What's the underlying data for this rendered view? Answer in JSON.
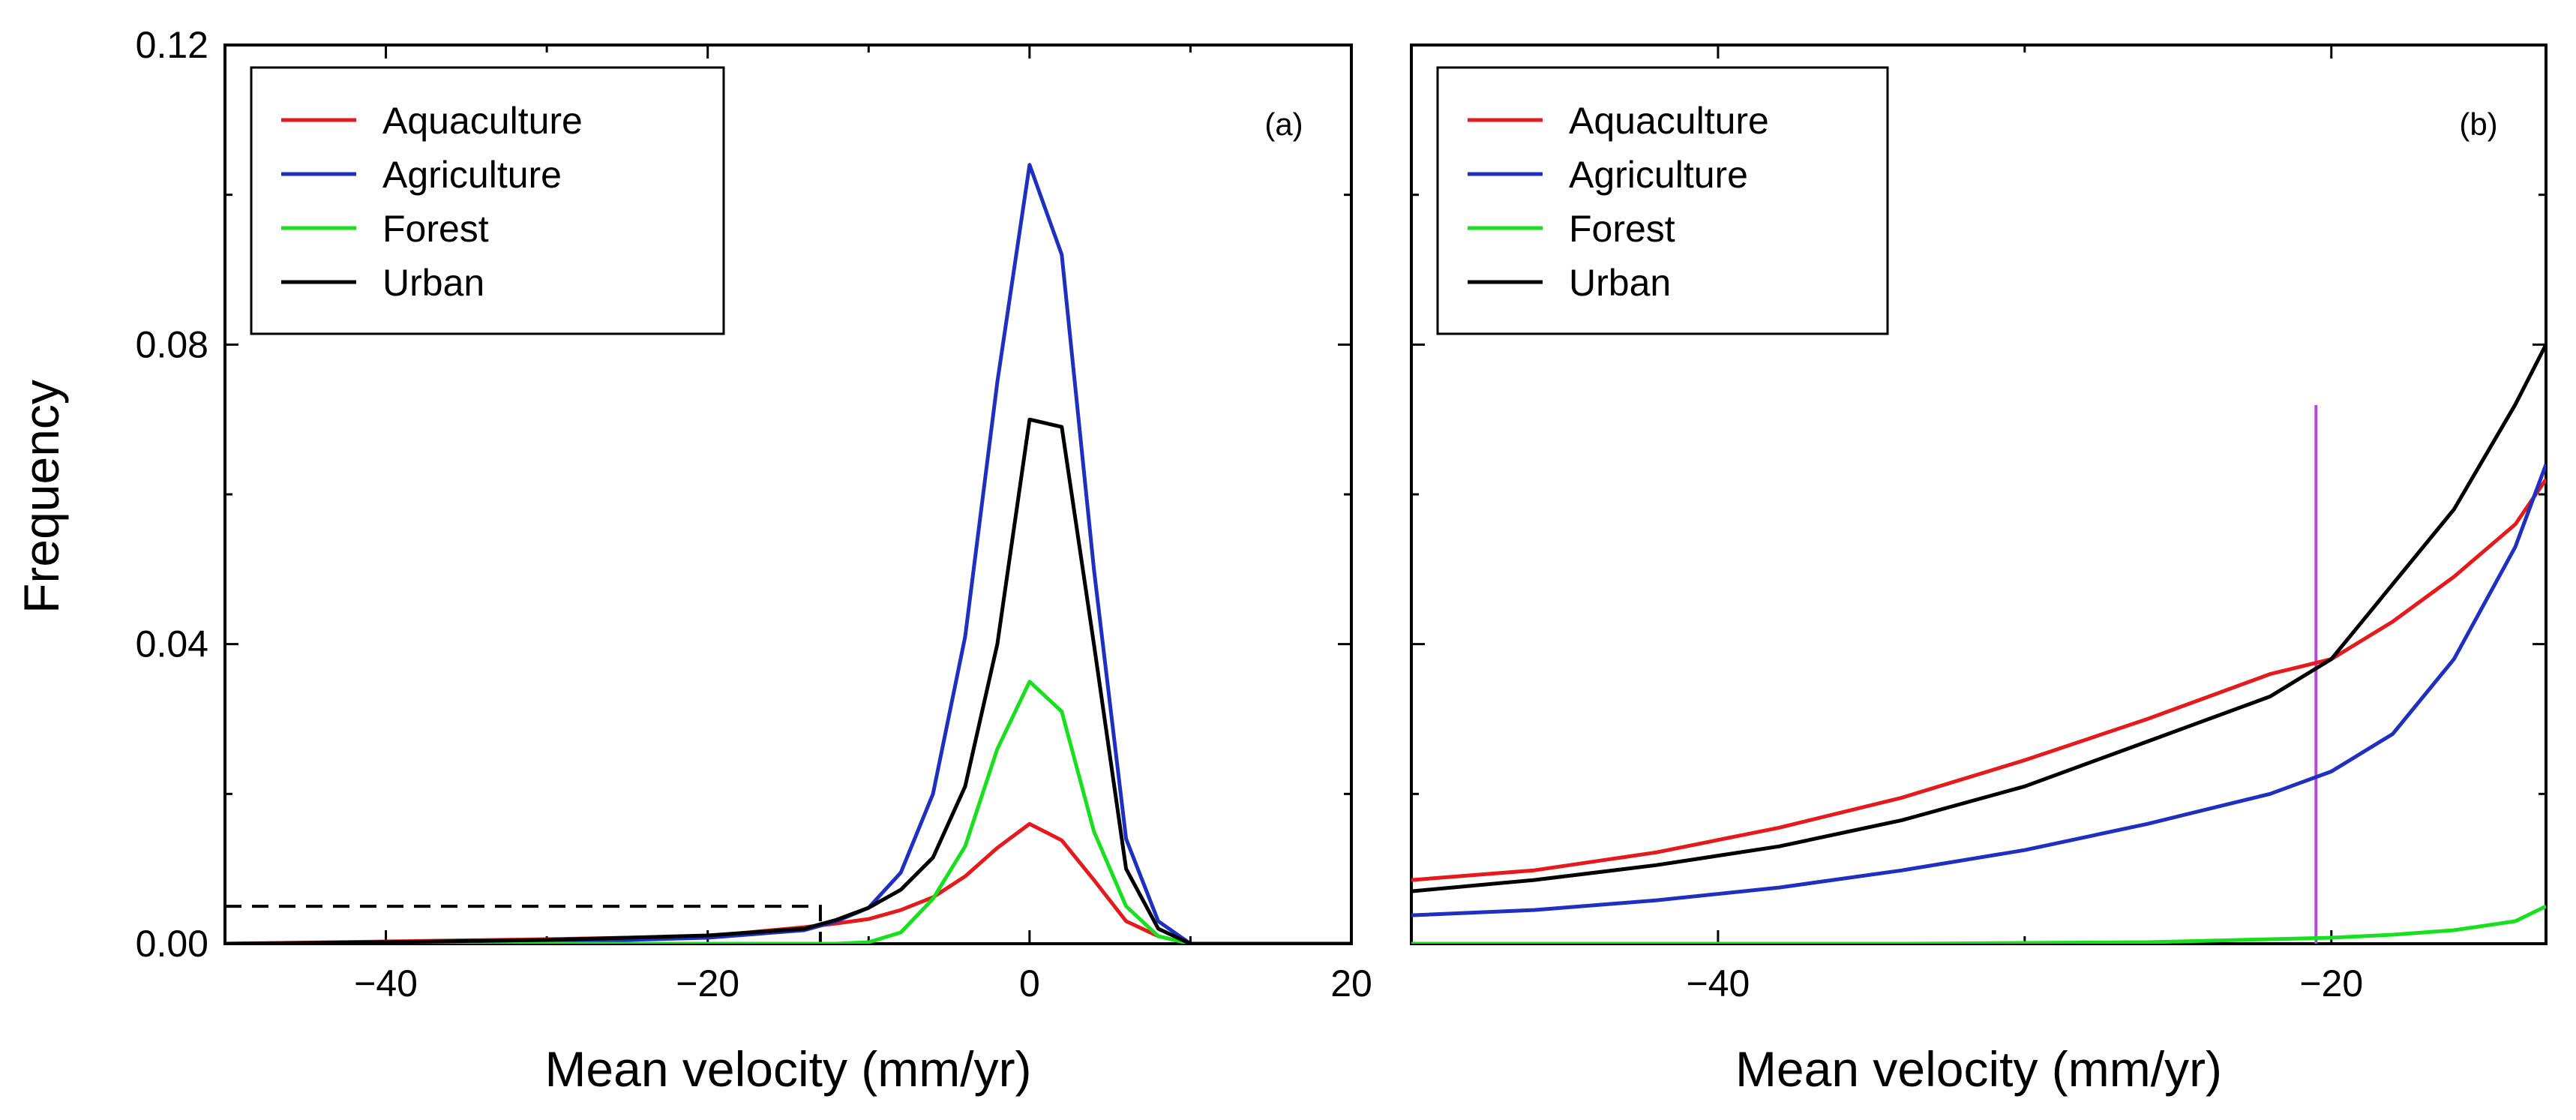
{
  "figure": {
    "ylabel": "Frequency",
    "colors": {
      "Aquaculture": "#e41a1c",
      "Agriculture": "#1f2fbf",
      "Forest": "#19e01f",
      "Urban": "#000000",
      "marker_line": "#b64ad8",
      "dashed_box": "#000000"
    }
  },
  "chart_data": [
    {
      "type": "line",
      "panel_label": "(a)",
      "xlabel": "Mean velocity (mm/yr)",
      "ylabel": "Frequency",
      "xlim": [
        -50,
        20
      ],
      "ylim": [
        0,
        0.12
      ],
      "xticks": [
        -40,
        -20,
        0,
        20
      ],
      "xtick_labels": [
        "−40",
        "−20",
        "0",
        "20"
      ],
      "yticks": [
        0,
        0.04,
        0.08,
        0.12
      ],
      "ytick_labels": [
        "0.00",
        "0.04",
        "0.08",
        "0.12"
      ],
      "legend_position": "top-left",
      "annotation": {
        "type": "dashed_box",
        "x_range": [
          -50,
          -13
        ],
        "y": 0.005
      },
      "series": [
        {
          "name": "Aquaculture",
          "color": "#e41a1c",
          "x": [
            -50,
            -40,
            -30,
            -20,
            -14,
            -12,
            -10,
            -8,
            -6,
            -4,
            -2,
            0,
            2,
            4,
            6,
            8,
            10,
            20
          ],
          "y": [
            0,
            0.0003,
            0.0006,
            0.001,
            0.0022,
            0.0027,
            0.0033,
            0.0045,
            0.0062,
            0.009,
            0.0128,
            0.016,
            0.0138,
            0.0085,
            0.003,
            0.001,
            0,
            0
          ]
        },
        {
          "name": "Agriculture",
          "color": "#1f2fbf",
          "x": [
            -50,
            -40,
            -30,
            -20,
            -14,
            -12,
            -10,
            -8,
            -6,
            -4,
            -2,
            0,
            2,
            4,
            6,
            8,
            10,
            20
          ],
          "y": [
            0,
            0,
            0.0002,
            0.0008,
            0.0018,
            0.003,
            0.0048,
            0.0095,
            0.02,
            0.041,
            0.075,
            0.104,
            0.092,
            0.05,
            0.014,
            0.003,
            0,
            0
          ]
        },
        {
          "name": "Forest",
          "color": "#19e01f",
          "x": [
            -50,
            -40,
            -30,
            -20,
            -14,
            -12,
            -10,
            -8,
            -6,
            -4,
            -2,
            0,
            2,
            4,
            6,
            8,
            10,
            20
          ],
          "y": [
            0,
            0,
            0,
            0,
            0,
            0,
            0.0002,
            0.0015,
            0.006,
            0.013,
            0.026,
            0.035,
            0.031,
            0.015,
            0.005,
            0.001,
            0,
            0
          ]
        },
        {
          "name": "Urban",
          "color": "#000000",
          "x": [
            -50,
            -40,
            -30,
            -20,
            -14,
            -12,
            -10,
            -8,
            -6,
            -4,
            -2,
            0,
            2,
            4,
            6,
            8,
            10,
            20
          ],
          "y": [
            0,
            0.0002,
            0.0005,
            0.0011,
            0.002,
            0.0032,
            0.0048,
            0.0072,
            0.0115,
            0.021,
            0.04,
            0.07,
            0.069,
            0.04,
            0.01,
            0.002,
            0,
            0
          ]
        }
      ]
    },
    {
      "type": "line",
      "panel_label": "(b)",
      "xlabel": "Mean velocity (mm/yr)",
      "xlim": [
        -50,
        -13
      ],
      "ylim": [
        0,
        0.12
      ],
      "xticks": [
        -40,
        -20
      ],
      "xtick_labels": [
        "−40",
        "−20"
      ],
      "legend_position": "top-left",
      "vertical_marker_x": -20.5,
      "series": [
        {
          "name": "Aquaculture",
          "color": "#e41a1c",
          "x": [
            -50,
            -46,
            -42,
            -38,
            -34,
            -30,
            -26,
            -22,
            -20,
            -18,
            -16,
            -14,
            -13
          ],
          "y": [
            0.0085,
            0.0098,
            0.0122,
            0.0155,
            0.0195,
            0.0245,
            0.03,
            0.036,
            0.038,
            0.043,
            0.049,
            0.056,
            0.062
          ]
        },
        {
          "name": "Agriculture",
          "color": "#1f2fbf",
          "x": [
            -50,
            -46,
            -42,
            -38,
            -34,
            -30,
            -26,
            -22,
            -20,
            -18,
            -16,
            -14,
            -13
          ],
          "y": [
            0.0038,
            0.0045,
            0.0058,
            0.0075,
            0.0098,
            0.0125,
            0.016,
            0.02,
            0.023,
            0.028,
            0.038,
            0.053,
            0.064
          ]
        },
        {
          "name": "Forest",
          "color": "#19e01f",
          "x": [
            -50,
            -46,
            -42,
            -38,
            -34,
            -30,
            -26,
            -22,
            -20,
            -18,
            -16,
            -14,
            -13
          ],
          "y": [
            0,
            0,
            0,
            0,
            0,
            0.0001,
            0.0002,
            0.0006,
            0.0008,
            0.0012,
            0.0018,
            0.003,
            0.005
          ]
        },
        {
          "name": "Urban",
          "color": "#000000",
          "x": [
            -50,
            -46,
            -42,
            -38,
            -34,
            -30,
            -26,
            -22,
            -20,
            -18,
            -16,
            -14,
            -13
          ],
          "y": [
            0.007,
            0.0085,
            0.0105,
            0.013,
            0.0165,
            0.021,
            0.027,
            0.033,
            0.038,
            0.048,
            0.058,
            0.072,
            0.08
          ]
        }
      ]
    }
  ]
}
